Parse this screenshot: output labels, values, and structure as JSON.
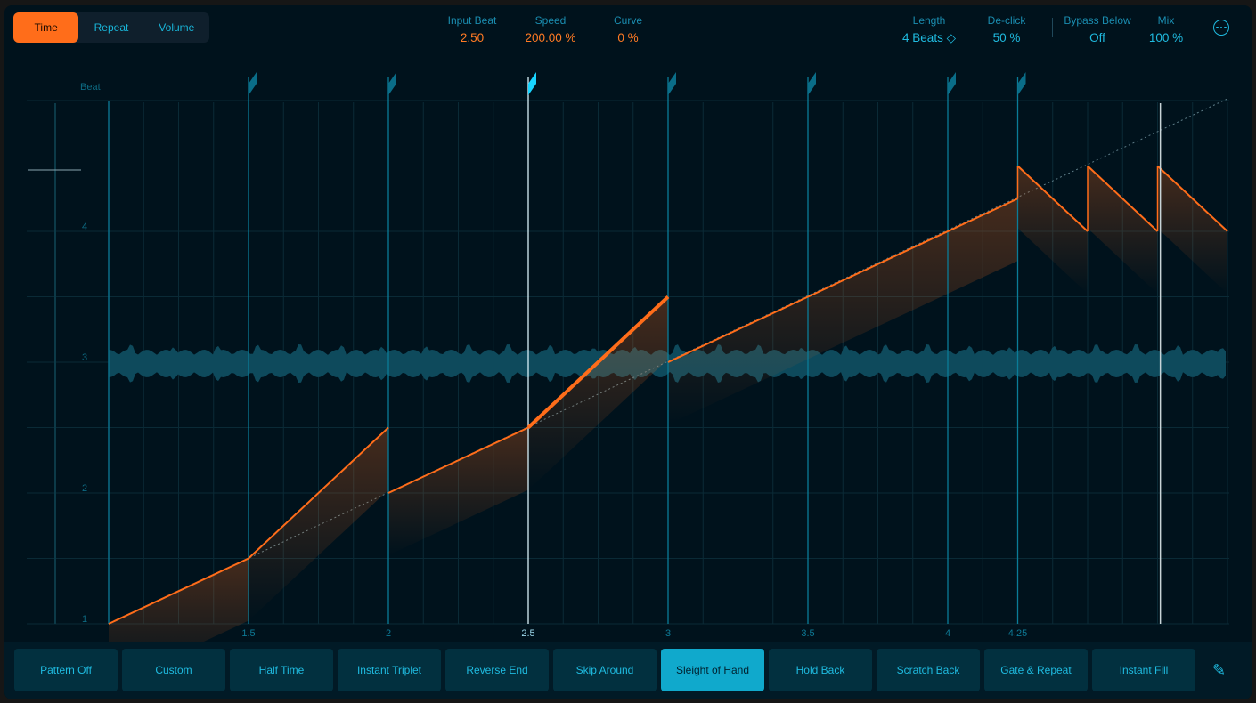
{
  "tabs": [
    {
      "label": "Time",
      "active": true
    },
    {
      "label": "Repeat",
      "active": false
    },
    {
      "label": "Volume",
      "active": false
    }
  ],
  "params": {
    "input_beat": {
      "label": "Input Beat",
      "value": "2.50"
    },
    "speed": {
      "label": "Speed",
      "value": "200.00 %"
    },
    "curve": {
      "label": "Curve",
      "value": "0 %"
    },
    "length": {
      "label": "Length",
      "value": "4 Beats ◇"
    },
    "declick": {
      "label": "De-click",
      "value": "50 %"
    },
    "bypass": {
      "label": "Bypass Below",
      "value": "Off"
    },
    "mix": {
      "label": "Mix",
      "value": "100 %"
    }
  },
  "more_icon": "ellipsis-circle-icon",
  "graph": {
    "y_title": "Beat",
    "y_ticks": [
      "1",
      "2",
      "3",
      "4"
    ],
    "x_ticks": [
      {
        "v": 1.5,
        "label": "1.5"
      },
      {
        "v": 2,
        "label": "2"
      },
      {
        "v": 2.5,
        "label": "2.5",
        "selected": true
      },
      {
        "v": 3,
        "label": "3"
      },
      {
        "v": 3.5,
        "label": "3.5"
      },
      {
        "v": 4,
        "label": "4"
      },
      {
        "v": 4.25,
        "label": "4.25"
      }
    ],
    "segments": [
      [
        [
          1,
          1
        ],
        [
          1.5,
          1.5
        ]
      ],
      [
        [
          1.5,
          1.5
        ],
        [
          2,
          2.5
        ]
      ],
      [
        [
          2,
          2
        ],
        [
          2.5,
          2.5
        ]
      ],
      [
        [
          2.5,
          2.5
        ],
        [
          3,
          3.5
        ]
      ],
      [
        [
          3,
          3
        ],
        [
          4.25,
          4.25
        ]
      ],
      [
        [
          4.25,
          4.5
        ],
        [
          4.5,
          4
        ]
      ],
      [
        [
          4.5,
          4.5
        ],
        [
          4.75,
          4
        ]
      ],
      [
        [
          4.75,
          4.5
        ],
        [
          5,
          4
        ]
      ]
    ],
    "selected_segment": 3,
    "playhead_beat": 4.76,
    "colors": {
      "curve": "#ff6d1a",
      "marker": "#0a6d88",
      "marker_selected": "#19d4ff",
      "wave": "#0e4a5c"
    }
  },
  "patterns": [
    "Pattern Off",
    "Custom",
    "Half Time",
    "Instant Triplet",
    "Reverse End",
    "Skip Around",
    "Sleight of Hand",
    "Hold Back",
    "Scratch Back",
    "Gate & Repeat",
    "Instant Fill"
  ],
  "active_pattern": "Sleight of Hand",
  "pencil_icon": "pencil-icon"
}
